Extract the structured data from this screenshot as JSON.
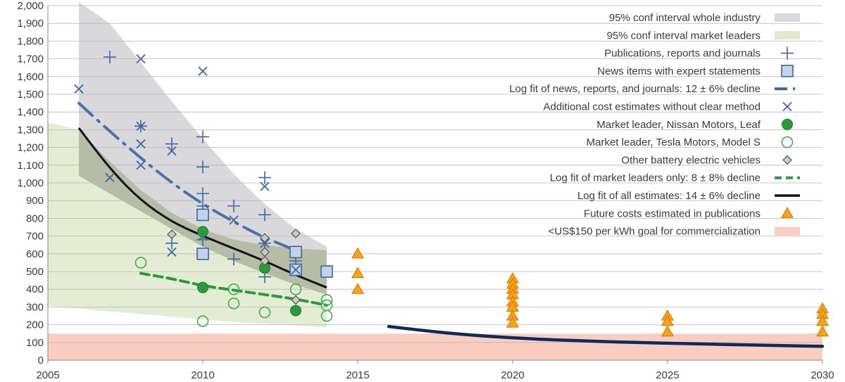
{
  "chart_data": {
    "type": "scatter",
    "xlim": [
      2005,
      2030
    ],
    "ylim": [
      0,
      2000
    ],
    "x_ticks": [
      "2005",
      "2010",
      "2015",
      "2020",
      "2025",
      "2030"
    ],
    "y_ticks": [
      "0",
      "100",
      "200",
      "300",
      "400",
      "500",
      "600",
      "700",
      "800",
      "900",
      "1,000",
      "1,100",
      "1,200",
      "1,300",
      "1,400",
      "1,500",
      "1,600",
      "1,700",
      "1,800",
      "1,900",
      "2,000"
    ],
    "grid": "horizontal",
    "legend_position": "top-right",
    "colors": {
      "whole_industry_band": "#d9d9dc",
      "market_leaders_band": "#dfe9cc",
      "overlap_band": "#a8ae98",
      "goal_band": "#f9cdc0",
      "blue": "#3c68a2",
      "green": "#2a9a3c",
      "black": "#111111",
      "navy": "#0e2a5c",
      "orange": "#f7a21b"
    },
    "legend": [
      {
        "label": "95% conf interval whole industry",
        "marker": "band-gray"
      },
      {
        "label": "95% conf interval market leaders",
        "marker": "band-green"
      },
      {
        "label": "Publications, reports and journals",
        "marker": "plus"
      },
      {
        "label": "News items with expert statements",
        "marker": "square"
      },
      {
        "label": "Log fit of news, reports, and journals: 12 ± 6% decline",
        "marker": "dashdot-blue"
      },
      {
        "label": "Additional cost estimates without clear method",
        "marker": "cross"
      },
      {
        "label": "Market leader, Nissan Motors, Leaf",
        "marker": "circle-filled"
      },
      {
        "label": "Market leader, Tesla Motors, Model S",
        "marker": "circle-open"
      },
      {
        "label": "Other battery electric vehicles",
        "marker": "diamond"
      },
      {
        "label": "Log fit of market leaders only: 8 ± 8% decline",
        "marker": "dash-green"
      },
      {
        "label": "Log fit of all estimates: 14 ± 6% decline",
        "marker": "line-black"
      },
      {
        "label": "Future costs estimated in publications",
        "marker": "triangle"
      },
      {
        "label": "<US$150 per kWh goal for commercialization",
        "marker": "band-pink"
      }
    ],
    "bands": {
      "whole_industry_upper": [
        [
          2006,
          2020
        ],
        [
          2007,
          1900
        ],
        [
          2008,
          1680
        ],
        [
          2009,
          1460
        ],
        [
          2010,
          1250
        ],
        [
          2011,
          1050
        ],
        [
          2012,
          880
        ],
        [
          2013,
          740
        ],
        [
          2014,
          640
        ]
      ],
      "whole_industry_lower": [
        [
          2006,
          1040
        ],
        [
          2007,
          940
        ],
        [
          2008,
          840
        ],
        [
          2009,
          740
        ],
        [
          2010,
          640
        ],
        [
          2011,
          560
        ],
        [
          2012,
          490
        ],
        [
          2013,
          425
        ],
        [
          2014,
          370
        ]
      ],
      "market_leaders_upper": [
        [
          2005,
          1340
        ],
        [
          2006,
          1300
        ],
        [
          2007,
          1120
        ],
        [
          2008,
          960
        ],
        [
          2009,
          830
        ],
        [
          2010,
          740
        ],
        [
          2011,
          680
        ],
        [
          2012,
          650
        ],
        [
          2013,
          630
        ],
        [
          2014,
          620
        ]
      ],
      "market_leaders_lower": [
        [
          2005,
          305
        ],
        [
          2006,
          290
        ],
        [
          2007,
          275
        ],
        [
          2008,
          260
        ],
        [
          2009,
          245
        ],
        [
          2010,
          230
        ],
        [
          2011,
          215
        ],
        [
          2012,
          205
        ],
        [
          2013,
          195
        ],
        [
          2014,
          185
        ]
      ],
      "green_lower_left": [
        [
          2005,
          900
        ],
        [
          2005,
          305
        ]
      ],
      "goal": [
        0,
        150
      ]
    },
    "series": [
      {
        "name": "Publications, reports and journals",
        "marker": "plus",
        "points": [
          [
            2007,
            1710
          ],
          [
            2008,
            1320
          ],
          [
            2009,
            1220
          ],
          [
            2009,
            660
          ],
          [
            2010,
            1260
          ],
          [
            2010,
            1090
          ],
          [
            2010,
            940
          ],
          [
            2010,
            870
          ],
          [
            2010,
            680
          ],
          [
            2011,
            870
          ],
          [
            2011,
            570
          ],
          [
            2012,
            1030
          ],
          [
            2012,
            820
          ],
          [
            2012,
            660
          ],
          [
            2012,
            470
          ],
          [
            2013,
            560
          ]
        ]
      },
      {
        "name": "News items with expert statements",
        "marker": "square",
        "points": [
          [
            2010,
            820
          ],
          [
            2010,
            600
          ],
          [
            2013,
            610
          ],
          [
            2013,
            510
          ],
          [
            2014,
            500
          ]
        ]
      },
      {
        "name": "Additional cost estimates without clear method",
        "marker": "cross",
        "points": [
          [
            2006,
            1530
          ],
          [
            2007,
            1030
          ],
          [
            2008,
            1700
          ],
          [
            2008,
            1320
          ],
          [
            2008,
            1220
          ],
          [
            2008,
            1100
          ],
          [
            2009,
            1180
          ],
          [
            2009,
            610
          ],
          [
            2010,
            1630
          ],
          [
            2010,
            700
          ],
          [
            2011,
            790
          ],
          [
            2012,
            980
          ],
          [
            2012,
            660
          ],
          [
            2013,
            510
          ]
        ]
      },
      {
        "name": "Market leader, Nissan Motors, Leaf",
        "marker": "circle-filled",
        "points": [
          [
            2010,
            725
          ],
          [
            2010,
            410
          ],
          [
            2012,
            520
          ],
          [
            2013,
            280
          ]
        ]
      },
      {
        "name": "Market leader, Tesla Motors, Model S",
        "marker": "circle-open",
        "points": [
          [
            2008,
            550
          ],
          [
            2010,
            220
          ],
          [
            2011,
            400
          ],
          [
            2011,
            320
          ],
          [
            2012,
            270
          ],
          [
            2013,
            400
          ],
          [
            2014,
            340
          ],
          [
            2014,
            310
          ],
          [
            2014,
            250
          ]
        ]
      },
      {
        "name": "Other battery electric vehicles",
        "marker": "diamond",
        "points": [
          [
            2009,
            710
          ],
          [
            2012,
            690
          ],
          [
            2012,
            610
          ],
          [
            2012,
            560
          ],
          [
            2013,
            715
          ],
          [
            2013,
            340
          ]
        ]
      },
      {
        "name": "Future costs estimated in publications",
        "marker": "triangle",
        "points": [
          [
            2015,
            600
          ],
          [
            2015,
            490
          ],
          [
            2015,
            400
          ],
          [
            2020,
            460
          ],
          [
            2020,
            430
          ],
          [
            2020,
            400
          ],
          [
            2020,
            370
          ],
          [
            2020,
            330
          ],
          [
            2020,
            300
          ],
          [
            2020,
            250
          ],
          [
            2020,
            210
          ],
          [
            2025,
            250
          ],
          [
            2025,
            220
          ],
          [
            2025,
            160
          ],
          [
            2030,
            290
          ],
          [
            2030,
            260
          ],
          [
            2030,
            220
          ],
          [
            2030,
            160
          ]
        ]
      }
    ],
    "lines": [
      {
        "name": "Log fit of news, reports, and journals: 12 ± 6% decline",
        "style": "dashdot-blue",
        "points": [
          [
            2006,
            1450
          ],
          [
            2007,
            1290
          ],
          [
            2008,
            1140
          ],
          [
            2009,
            1000
          ],
          [
            2010,
            880
          ],
          [
            2011,
            780
          ],
          [
            2012,
            690
          ],
          [
            2013,
            620
          ]
        ]
      },
      {
        "name": "Log fit of market leaders only: 8 ± 8% decline",
        "style": "dash-green",
        "points": [
          [
            2008,
            490
          ],
          [
            2009,
            460
          ],
          [
            2010,
            420
          ],
          [
            2011,
            395
          ],
          [
            2012,
            370
          ],
          [
            2013,
            345
          ],
          [
            2014,
            310
          ]
        ]
      },
      {
        "name": "Log fit of all estimates: 14 ± 6% decline",
        "style": "line-black",
        "points": [
          [
            2006,
            1310
          ],
          [
            2007,
            1080
          ],
          [
            2008,
            900
          ],
          [
            2009,
            780
          ],
          [
            2010,
            700
          ],
          [
            2011,
            630
          ],
          [
            2012,
            560
          ],
          [
            2013,
            480
          ],
          [
            2014,
            410
          ]
        ]
      },
      {
        "name": "navy-projection",
        "style": "line-navy",
        "points": [
          [
            2016,
            190
          ],
          [
            2018,
            150
          ],
          [
            2020,
            125
          ],
          [
            2022,
            110
          ],
          [
            2025,
            95
          ],
          [
            2028,
            85
          ],
          [
            2030,
            78
          ]
        ]
      }
    ]
  }
}
